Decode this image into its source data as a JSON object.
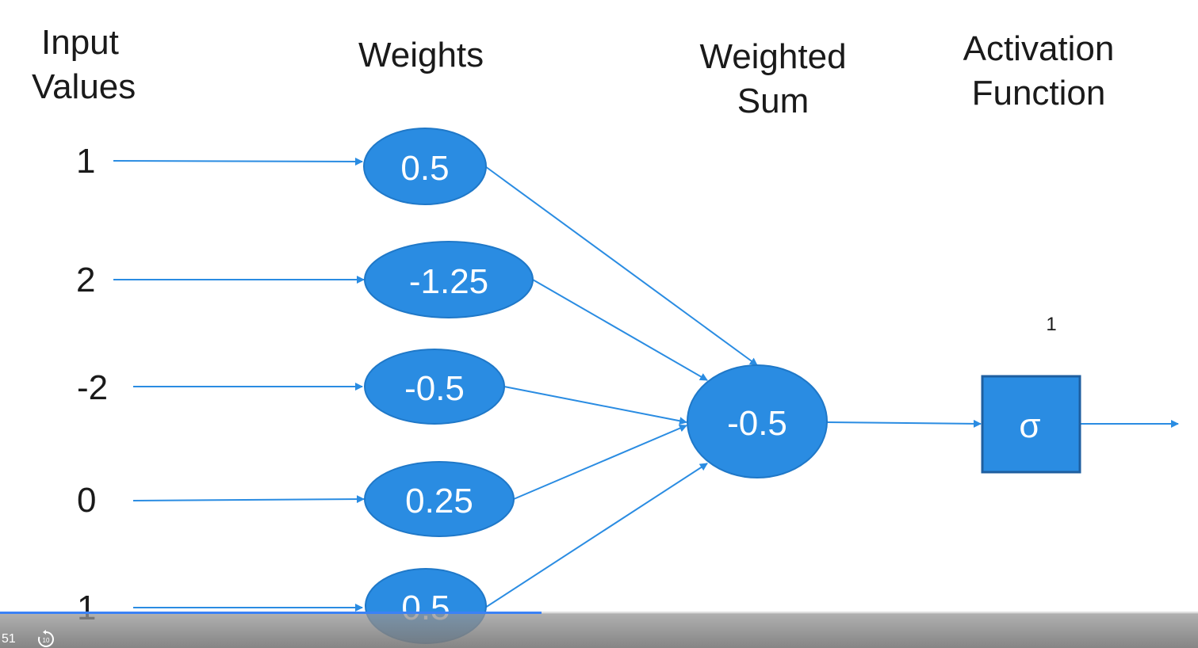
{
  "headers": {
    "input_line1": "Input",
    "input_line2": "Values",
    "weights": "Weights",
    "sum_line1": "Weighted",
    "sum_line2": "Sum",
    "activation_line1": "Activation",
    "activation_line2": "Function"
  },
  "inputs": [
    "1",
    "2",
    "-2",
    "0",
    "1"
  ],
  "weights": [
    "0.5",
    "-1.25",
    "-0.5",
    "0.25",
    "0.5"
  ],
  "weighted_sum": "-0.5",
  "activation_symbol": "σ",
  "activation_superscript": "1",
  "colors": {
    "node_fill": "#2a8ce2",
    "node_stroke": "#1f78c8",
    "arrow": "#2a8ce2",
    "progress": "#3b82f6"
  },
  "player": {
    "time": "51",
    "progress": 0.452,
    "replay_icon": "replay-10-icon"
  }
}
